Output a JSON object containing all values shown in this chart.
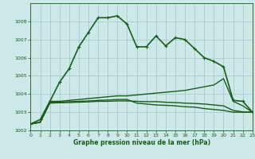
{
  "xlabel": "Graphe pression niveau de la mer (hPa)",
  "background_color": "#cce8e8",
  "grid_color": "#aacccc",
  "line_color": "#1a5c1a",
  "ylim": [
    1002,
    1009
  ],
  "xlim": [
    0,
    23
  ],
  "yticks": [
    1002,
    1003,
    1004,
    1005,
    1006,
    1007,
    1008
  ],
  "xticks": [
    0,
    1,
    2,
    3,
    4,
    5,
    6,
    7,
    8,
    9,
    10,
    11,
    12,
    13,
    14,
    15,
    16,
    17,
    18,
    19,
    20,
    21,
    22,
    23
  ],
  "series": [
    {
      "x": [
        0,
        1,
        2,
        3,
        4,
        5,
        6,
        7,
        8,
        9,
        10,
        11,
        12,
        13,
        14,
        15,
        16,
        17,
        18,
        19,
        20,
        21,
        22,
        23
      ],
      "y": [
        1002.35,
        1002.6,
        1003.6,
        1004.65,
        1005.4,
        1006.6,
        1007.4,
        1008.2,
        1008.2,
        1008.3,
        1007.85,
        1006.6,
        1006.6,
        1007.2,
        1006.65,
        1007.1,
        1007.0,
        1006.5,
        1006.0,
        1005.8,
        1005.5,
        1003.65,
        1003.6,
        1003.0
      ],
      "marker": "+",
      "markersize": 3.5,
      "linewidth": 1.2
    },
    {
      "x": [
        0,
        1,
        2,
        3,
        4,
        5,
        6,
        7,
        8,
        9,
        10,
        11,
        12,
        13,
        14,
        15,
        16,
        17,
        18,
        19,
        20,
        21,
        22,
        23
      ],
      "y": [
        1002.35,
        1002.45,
        1003.6,
        1003.6,
        1003.65,
        1003.7,
        1003.75,
        1003.8,
        1003.85,
        1003.9,
        1003.9,
        1003.95,
        1004.0,
        1004.05,
        1004.1,
        1004.15,
        1004.2,
        1004.3,
        1004.4,
        1004.5,
        1004.85,
        1003.6,
        1003.35,
        1003.0
      ],
      "marker": null,
      "markersize": 0,
      "linewidth": 1.0
    },
    {
      "x": [
        0,
        1,
        2,
        3,
        4,
        5,
        6,
        7,
        8,
        9,
        10,
        11,
        12,
        13,
        14,
        15,
        16,
        17,
        18,
        19,
        20,
        21,
        22,
        23
      ],
      "y": [
        1002.35,
        1002.45,
        1003.55,
        1003.55,
        1003.58,
        1003.6,
        1003.62,
        1003.65,
        1003.67,
        1003.7,
        1003.7,
        1003.5,
        1003.45,
        1003.4,
        1003.38,
        1003.35,
        1003.3,
        1003.28,
        1003.2,
        1003.15,
        1003.1,
        1003.0,
        1003.0,
        1003.0
      ],
      "marker": null,
      "markersize": 0,
      "linewidth": 1.0
    },
    {
      "x": [
        0,
        1,
        2,
        3,
        4,
        5,
        6,
        7,
        8,
        9,
        10,
        11,
        12,
        13,
        14,
        15,
        16,
        17,
        18,
        19,
        20,
        21,
        22,
        23
      ],
      "y": [
        1002.35,
        1002.44,
        1003.5,
        1003.52,
        1003.53,
        1003.55,
        1003.57,
        1003.6,
        1003.6,
        1003.62,
        1003.62,
        1003.6,
        1003.58,
        1003.58,
        1003.55,
        1003.53,
        1003.5,
        1003.48,
        1003.45,
        1003.4,
        1003.35,
        1003.1,
        1003.02,
        1003.0
      ],
      "marker": null,
      "markersize": 0,
      "linewidth": 1.0
    }
  ]
}
